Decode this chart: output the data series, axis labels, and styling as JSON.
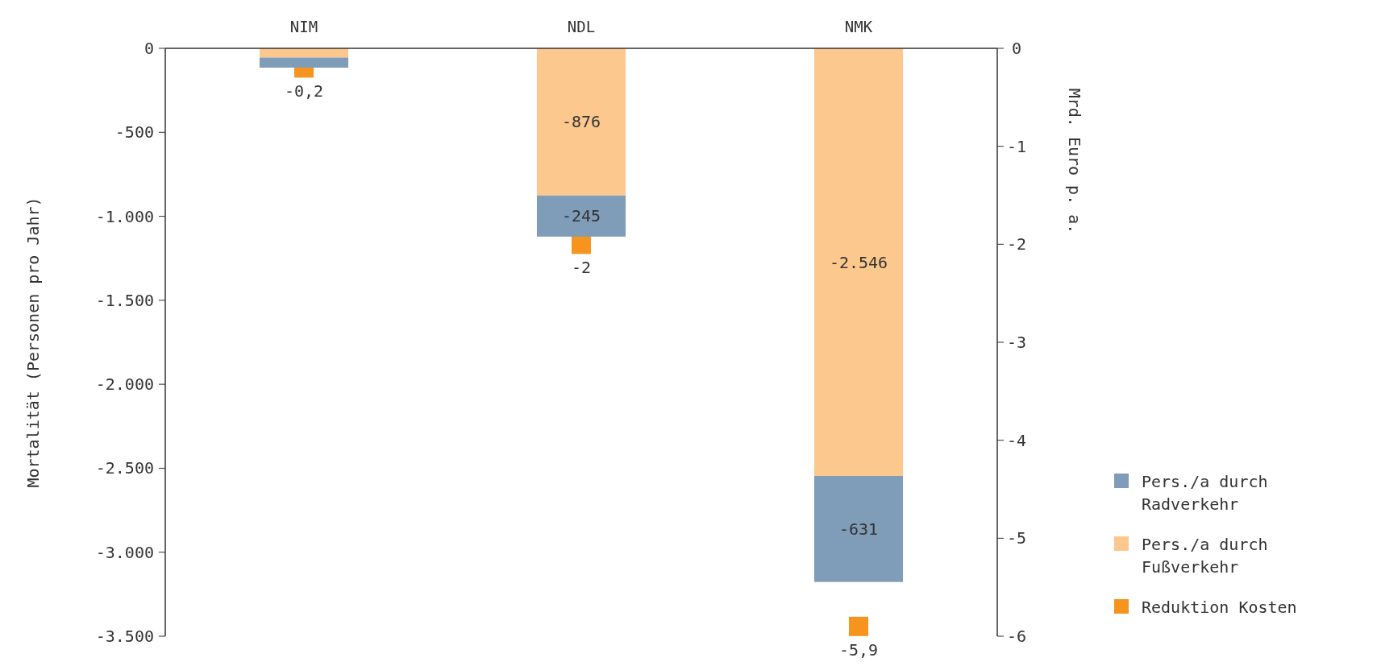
{
  "chart_data": {
    "type": "bar",
    "categories": [
      "NIM",
      "NDL",
      "NMK"
    ],
    "stacked": true,
    "ylabel": "Mortalität (Personen pro Jahr)",
    "y2label": "Mrd. Euro p. a.",
    "ylim": [
      -3500,
      0
    ],
    "yticks": [
      0,
      {
        "value": -500,
        "label": "-500"
      },
      {
        "value": -1000,
        "label": "-1.000"
      },
      {
        "value": -1500,
        "label": "-1.500"
      },
      {
        "value": -2000,
        "label": "-2.000"
      },
      {
        "value": -2500,
        "label": "-2.500"
      },
      {
        "value": -3000,
        "label": "-3.000"
      },
      {
        "value": -3500,
        "label": "-3.500"
      }
    ],
    "y2lim": [
      -6,
      0
    ],
    "y2ticks": [
      0,
      -1,
      -2,
      -3,
      -4,
      -5,
      -6
    ],
    "legend": "bottom right",
    "grid": false,
    "series": [
      {
        "name": "Pers./a durch Fußverkehr",
        "color": "#fdc88e",
        "values": [
          -55,
          -876,
          -2546
        ],
        "value_labels": [
          null,
          "-876",
          "-2.546"
        ]
      },
      {
        "name": "Pers./a durch Radverkehr",
        "color": "#7f9cb8",
        "values": [
          -60,
          -245,
          -631
        ],
        "value_labels": [
          null,
          "-245",
          "-631"
        ]
      },
      {
        "name": "Reduktion Kosten",
        "type": "scatter",
        "marker": "square",
        "axis": "y2",
        "color": "#f7941d",
        "values": [
          -0.2,
          -2,
          -5.9
        ],
        "value_labels": [
          "-0,2",
          "-2",
          "-5,9"
        ]
      }
    ]
  }
}
